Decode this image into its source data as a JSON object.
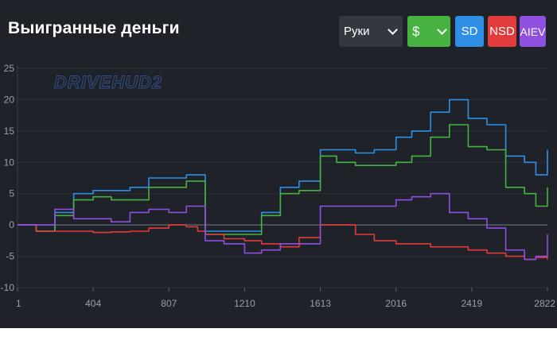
{
  "header": {
    "title": "Выигранные деньги",
    "hands_select": "Руки",
    "currency_select": "$",
    "toggles": [
      "SD",
      "NSD",
      "AIEV"
    ]
  },
  "watermark": "DRIVEHUD2",
  "colors": {
    "background": "#1f2228",
    "total": "#2f8fe6",
    "sd": "#46b23f",
    "nsd": "#e23b3b",
    "aiev": "#8f4fe0"
  },
  "chart_data": {
    "type": "line",
    "title": "Выигранные деньги",
    "xlim": [
      1,
      2822
    ],
    "ylim": [
      -10,
      25
    ],
    "x_ticks": [
      "1",
      "404",
      "807",
      "1210",
      "1613",
      "2016",
      "2419",
      "2822"
    ],
    "y_ticks": [
      "25",
      "20",
      "15",
      "10",
      "5",
      "0",
      "-5",
      "-10"
    ],
    "x": [
      1,
      100,
      200,
      300,
      404,
      500,
      600,
      700,
      807,
      900,
      960,
      1000,
      1100,
      1210,
      1300,
      1400,
      1500,
      1613,
      1700,
      1800,
      1900,
      2016,
      2100,
      2200,
      2300,
      2400,
      2500,
      2600,
      2700,
      2760,
      2822
    ],
    "series": [
      {
        "color": "#2f8fe6",
        "values": [
          0,
          -1,
          2,
          5,
          5.5,
          5.5,
          6,
          7.5,
          7.5,
          8,
          8,
          -1,
          -1,
          -1,
          2,
          6,
          7,
          12,
          12,
          11.5,
          12,
          14,
          15,
          18,
          20,
          17,
          16,
          11,
          10,
          8,
          12
        ]
      },
      {
        "color": "#46b23f",
        "values": [
          0,
          -1,
          1.5,
          4,
          4.5,
          4,
          4,
          6,
          6,
          7,
          7,
          -1.5,
          -1.5,
          -1.5,
          1.5,
          5,
          5.5,
          11,
          10,
          9.5,
          9.5,
          10,
          11,
          14,
          16,
          12.5,
          12,
          6,
          5,
          3,
          6
        ]
      },
      {
        "color": "#e23b3b",
        "values": [
          0,
          -1,
          -1,
          -1,
          -1.2,
          -1.1,
          -1,
          -0.5,
          0,
          -0.3,
          -1,
          -1.5,
          -2.2,
          -2.5,
          -3,
          -3.5,
          -2,
          0,
          0,
          -1.5,
          -2.5,
          -3,
          -3,
          -3.5,
          -3.5,
          -4,
          -4.5,
          -5,
          -5.5,
          -5.2,
          -5.5
        ]
      },
      {
        "color": "#8f4fe0",
        "values": [
          0,
          0,
          2.5,
          1,
          1,
          0.5,
          2,
          2.5,
          2,
          3,
          3,
          -2.5,
          -3,
          -4.5,
          -4,
          -3,
          -3,
          3,
          3,
          3,
          3,
          4,
          4.5,
          5,
          2,
          1,
          -0.5,
          -4,
          -5.5,
          -5,
          -1.5
        ]
      }
    ]
  }
}
